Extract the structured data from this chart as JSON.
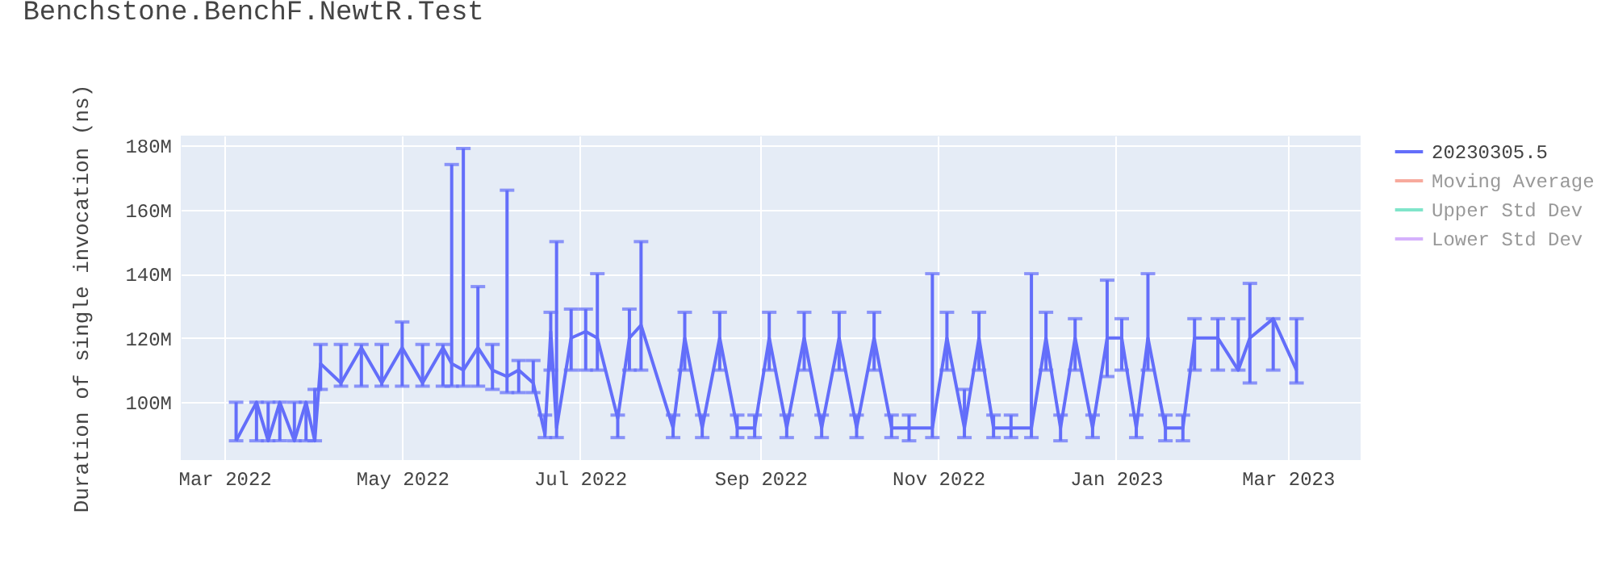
{
  "chart_data": {
    "type": "line",
    "title": "Benchstone.BenchF.NewtR.Test",
    "ylabel": "Duration of single invocation (ns)",
    "xlim": [
      "2022-02-14",
      "2023-03-26"
    ],
    "xticks": [
      {
        "value": "2022-03-01",
        "label": "Mar 2022"
      },
      {
        "value": "2022-05-01",
        "label": "May 2022"
      },
      {
        "value": "2022-07-01",
        "label": "Jul 2022"
      },
      {
        "value": "2022-09-01",
        "label": "Sep 2022"
      },
      {
        "value": "2022-11-01",
        "label": "Nov 2022"
      },
      {
        "value": "2023-01-01",
        "label": "Jan 2023"
      },
      {
        "value": "2023-03-01",
        "label": "Mar 2023"
      }
    ],
    "ylim": [
      82000000,
      183000000
    ],
    "yticks": [
      {
        "value": 100000000,
        "label": "100M"
      },
      {
        "value": 120000000,
        "label": "120M"
      },
      {
        "value": 140000000,
        "label": "140M"
      },
      {
        "value": 160000000,
        "label": "160M"
      },
      {
        "value": 180000000,
        "label": "180M"
      }
    ],
    "grid": true,
    "legend": "top right",
    "marker": "none",
    "line_style": "solid",
    "series": [
      {
        "name": "20230305.5",
        "color": "#636efa",
        "x": [
          "2022-03-05",
          "2022-03-12",
          "2022-03-16",
          "2022-03-20",
          "2022-03-25",
          "2022-03-29",
          "2022-04-01",
          "2022-04-03",
          "2022-04-10",
          "2022-04-17",
          "2022-04-24",
          "2022-05-01",
          "2022-05-08",
          "2022-05-15",
          "2022-05-18",
          "2022-05-22",
          "2022-05-27",
          "2022-06-01",
          "2022-06-06",
          "2022-06-10",
          "2022-06-15",
          "2022-06-19",
          "2022-06-21",
          "2022-06-23",
          "2022-06-28",
          "2022-07-03",
          "2022-07-07",
          "2022-07-14",
          "2022-07-18",
          "2022-07-22",
          "2022-08-02",
          "2022-08-06",
          "2022-08-12",
          "2022-08-18",
          "2022-08-24",
          "2022-08-30",
          "2022-09-04",
          "2022-09-10",
          "2022-09-16",
          "2022-09-22",
          "2022-09-28",
          "2022-10-04",
          "2022-10-10",
          "2022-10-16",
          "2022-10-22",
          "2022-10-30",
          "2022-11-04",
          "2022-11-10",
          "2022-11-15",
          "2022-11-20",
          "2022-11-26",
          "2022-12-03",
          "2022-12-08",
          "2022-12-13",
          "2022-12-18",
          "2022-12-24",
          "2022-12-29",
          "2023-01-03",
          "2023-01-08",
          "2023-01-12",
          "2023-01-18",
          "2023-01-24",
          "2023-01-28",
          "2023-02-05",
          "2023-02-12",
          "2023-02-16",
          "2023-02-24",
          "2023-03-04"
        ],
        "values": [
          88000000,
          100000000,
          88000000,
          100000000,
          88000000,
          100000000,
          88000000,
          112000000,
          106000000,
          117000000,
          106000000,
          117000000,
          106000000,
          117000000,
          112000000,
          110000000,
          117000000,
          110000000,
          108000000,
          110000000,
          106000000,
          90000000,
          122000000,
          92000000,
          120000000,
          122000000,
          120000000,
          95000000,
          120000000,
          124000000,
          92000000,
          120000000,
          92000000,
          120000000,
          92000000,
          92000000,
          120000000,
          92000000,
          120000000,
          92000000,
          120000000,
          92000000,
          120000000,
          92000000,
          92000000,
          92000000,
          120000000,
          92000000,
          120000000,
          92000000,
          92000000,
          92000000,
          120000000,
          92000000,
          120000000,
          92000000,
          120000000,
          120000000,
          92000000,
          120000000,
          92000000,
          92000000,
          120000000,
          120000000,
          110000000,
          120000000,
          126000000,
          110000000
        ],
        "errors": [
          [
            88000000,
            100000000
          ],
          [
            88000000,
            100000000
          ],
          [
            88000000,
            100000000
          ],
          [
            88000000,
            100000000
          ],
          [
            88000000,
            100000000
          ],
          [
            88000000,
            100000000
          ],
          [
            88000000,
            104000000
          ],
          [
            104000000,
            118000000
          ],
          [
            105000000,
            118000000
          ],
          [
            105000000,
            118000000
          ],
          [
            105000000,
            118000000
          ],
          [
            105000000,
            125000000
          ],
          [
            105000000,
            118000000
          ],
          [
            105000000,
            118000000
          ],
          [
            105000000,
            174000000
          ],
          [
            105000000,
            179000000
          ],
          [
            105000000,
            136000000
          ],
          [
            104000000,
            118000000
          ],
          [
            103000000,
            166000000
          ],
          [
            103000000,
            113000000
          ],
          [
            103000000,
            113000000
          ],
          [
            89000000,
            96000000
          ],
          [
            110000000,
            128000000
          ],
          [
            89000000,
            150000000
          ],
          [
            110000000,
            129000000
          ],
          [
            110000000,
            129000000
          ],
          [
            110000000,
            140000000
          ],
          [
            89000000,
            96000000
          ],
          [
            110000000,
            129000000
          ],
          [
            110000000,
            150000000
          ],
          [
            89000000,
            96000000
          ],
          [
            110000000,
            128000000
          ],
          [
            89000000,
            96000000
          ],
          [
            110000000,
            128000000
          ],
          [
            89000000,
            96000000
          ],
          [
            89000000,
            96000000
          ],
          [
            110000000,
            128000000
          ],
          [
            89000000,
            96000000
          ],
          [
            110000000,
            128000000
          ],
          [
            89000000,
            96000000
          ],
          [
            110000000,
            128000000
          ],
          [
            89000000,
            96000000
          ],
          [
            110000000,
            128000000
          ],
          [
            89000000,
            96000000
          ],
          [
            88000000,
            96000000
          ],
          [
            89000000,
            140000000
          ],
          [
            110000000,
            128000000
          ],
          [
            89000000,
            104000000
          ],
          [
            110000000,
            128000000
          ],
          [
            89000000,
            96000000
          ],
          [
            89000000,
            96000000
          ],
          [
            89000000,
            140000000
          ],
          [
            110000000,
            128000000
          ],
          [
            88000000,
            96000000
          ],
          [
            110000000,
            126000000
          ],
          [
            89000000,
            96000000
          ],
          [
            108000000,
            138000000
          ],
          [
            110000000,
            126000000
          ],
          [
            89000000,
            96000000
          ],
          [
            110000000,
            140000000
          ],
          [
            88000000,
            96000000
          ],
          [
            88000000,
            96000000
          ],
          [
            110000000,
            126000000
          ],
          [
            110000000,
            126000000
          ],
          [
            110000000,
            126000000
          ],
          [
            106000000,
            137000000
          ],
          [
            110000000,
            126000000
          ],
          [
            106000000,
            126000000
          ]
        ]
      },
      {
        "name": "Moving Average",
        "color": "#f7aa9d"
      },
      {
        "name": "Upper Std Dev",
        "color": "#80e5ca"
      },
      {
        "name": "Lower Std Dev",
        "color": "#d5b1fc"
      }
    ]
  }
}
